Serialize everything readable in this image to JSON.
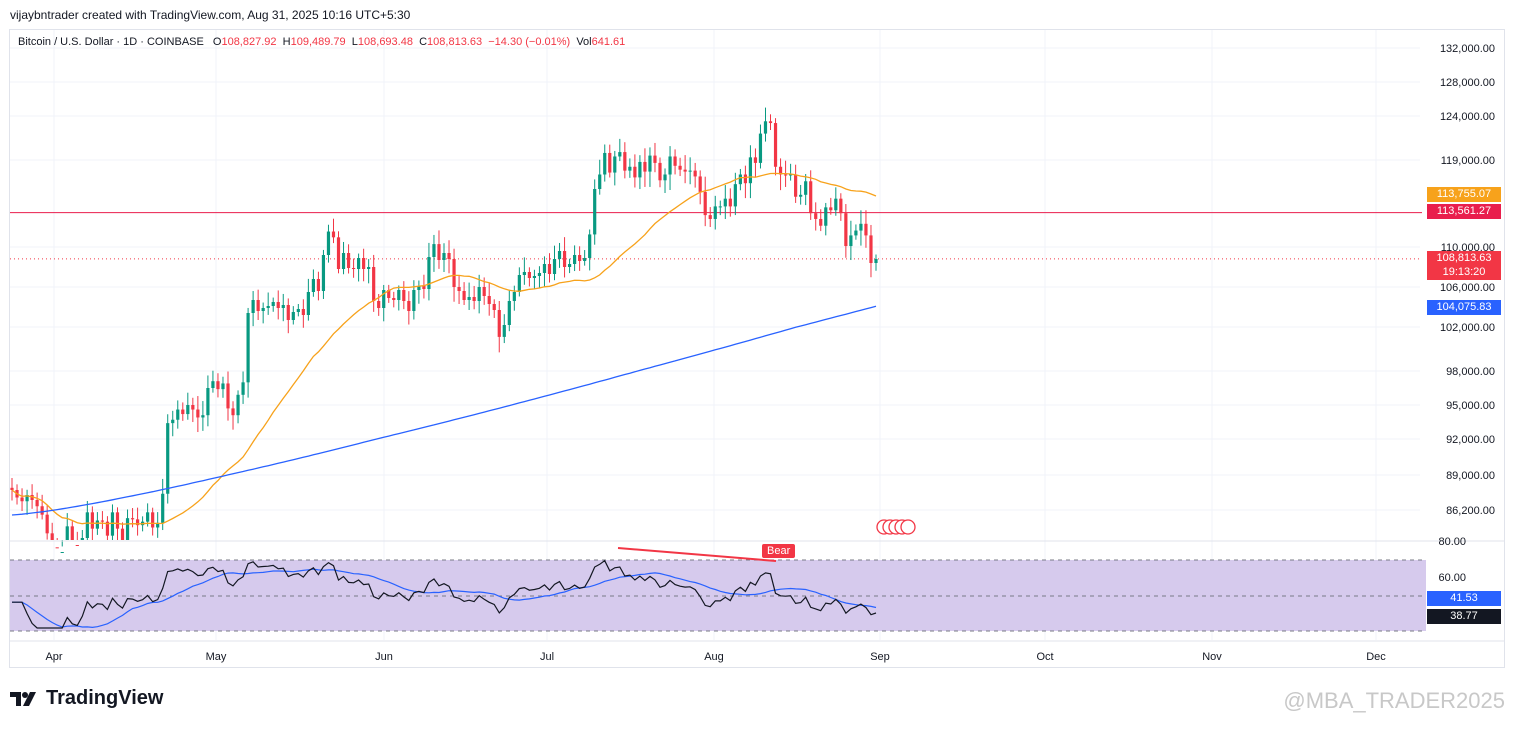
{
  "header": {
    "attribution": "vijaybntrader created with TradingView.com, Aug 31, 2025 10:16 UTC+5:30"
  },
  "legend": {
    "symbol": "Bitcoin / U.S. Dollar · 1D · COINBASE",
    "o_label": "O",
    "o_value": "108,827.92",
    "h_label": "H",
    "h_value": "109,489.79",
    "l_label": "L",
    "l_value": "108,693.48",
    "c_label": "C",
    "c_value": "108,813.63",
    "change": "−14.30 (−0.01%)",
    "vol_label": "Vol",
    "vol_value": "641.61"
  },
  "price_tags": {
    "ma50": "113,755.07",
    "hline": "113,561.27",
    "last": "108,813.63",
    "countdown": "19:13:20",
    "ma200": "104,075.83",
    "rsi_ma": "41.53",
    "rsi": "38.77"
  },
  "bear_label": "Bear",
  "branding": {
    "logo": "TradingView",
    "watermark": "@MBA_TRADER2025"
  },
  "colors": {
    "up": "#089981",
    "down": "#f23645",
    "ma50": "#f7a21b",
    "ma200": "#2962ff",
    "rsi_line": "#131722",
    "rsi_ma": "#2962ff",
    "rsi_band": "#d4c7ec",
    "hline": "#e91e4d"
  },
  "chart_data": {
    "type": "candlestick",
    "symbol": "Bitcoin / U.S. Dollar",
    "interval": "1D",
    "exchange": "COINBASE",
    "x_labels": [
      "Apr",
      "May",
      "Jun",
      "Jul",
      "Aug",
      "Sep",
      "Oct",
      "Nov",
      "Dec"
    ],
    "y_tick_labels": [
      "132,000.00",
      "128,000.00",
      "124,000.00",
      "119,000.00",
      "110,000.00",
      "106,000.00",
      "102,000.00",
      "98,000.00",
      "95,000.00",
      "92,000.00",
      "89,000.00",
      "86,200.00"
    ],
    "rsi_tick_labels": [
      "80.00",
      "60.00"
    ],
    "horizontal_line": 113561.27,
    "last_price": 108813.63,
    "ohlc_last": {
      "open": 108827.92,
      "high": 109489.79,
      "low": 108693.48,
      "close": 108813.63,
      "volume": 641.61
    },
    "ma50_last": 113755.07,
    "ma200_last": 104075.83,
    "rsi_last": 38.77,
    "rsi_ma_last": 41.53,
    "bear_divergence": true
  }
}
